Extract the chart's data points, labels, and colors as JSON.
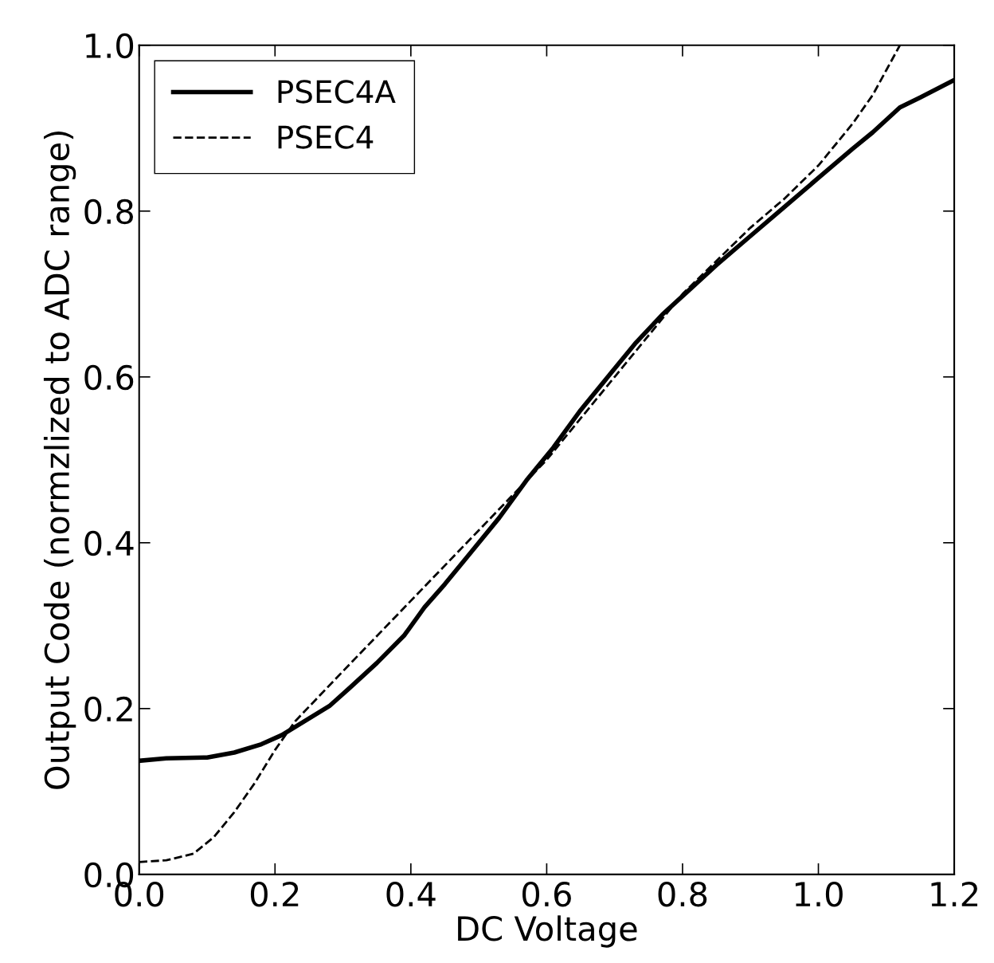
{
  "chart_data": {
    "type": "line",
    "xlabel": "DC Voltage",
    "ylabel": "Output Code (normzlized to ADC range)",
    "xlim": [
      0.0,
      1.2
    ],
    "ylim": [
      0.0,
      1.0
    ],
    "xticks": [
      {
        "value": 0,
        "label": "0.0"
      },
      0.2,
      0.4,
      0.6,
      0.8,
      {
        "value": 1,
        "label": "1.0"
      },
      1.2
    ],
    "yticks": [
      {
        "value": 0,
        "label": "0.0"
      },
      0.2,
      0.4,
      0.6,
      0.8,
      {
        "value": 1,
        "label": "1.0"
      }
    ],
    "grid": false,
    "legend": "top left",
    "marker": "none",
    "series": [
      {
        "name": "PSEC4A",
        "color": "#000000",
        "line_style": "solid",
        "x": [
          0,
          0.04,
          0.1,
          0.14,
          0.18,
          0.21,
          0.28,
          0.31,
          0.35,
          0.39,
          0.42,
          0.45,
          0.49,
          0.53,
          0.57,
          0.61,
          0.65,
          0.69,
          0.73,
          0.77,
          0.81,
          0.85,
          0.9,
          0.95,
          1.0,
          1.05,
          1.08,
          1.12,
          1.15,
          1.2
        ],
        "values": [
          0.137,
          0.14,
          0.141,
          0.147,
          0.157,
          0.168,
          0.203,
          0.225,
          0.255,
          0.288,
          0.322,
          0.35,
          0.39,
          0.43,
          0.475,
          0.515,
          0.56,
          0.6,
          0.64,
          0.675,
          0.705,
          0.735,
          0.77,
          0.805,
          0.84,
          0.875,
          0.895,
          0.925,
          0.937,
          0.958
        ]
      },
      {
        "name": "PSEC4",
        "color": "#000000",
        "line_style": "dashed",
        "x": [
          0,
          0.04,
          0.08,
          0.11,
          0.14,
          0.17,
          0.2,
          0.23,
          0.3,
          0.4,
          0.5,
          0.6,
          0.7,
          0.8,
          0.9,
          0.95,
          1.0,
          1.05,
          1.08,
          1.1,
          1.12
        ],
        "values": [
          0.015,
          0.017,
          0.025,
          0.045,
          0.075,
          0.11,
          0.15,
          0.185,
          0.245,
          0.33,
          0.415,
          0.5,
          0.6,
          0.7,
          0.78,
          0.815,
          0.855,
          0.905,
          0.94,
          0.97,
          1.0
        ]
      }
    ]
  }
}
